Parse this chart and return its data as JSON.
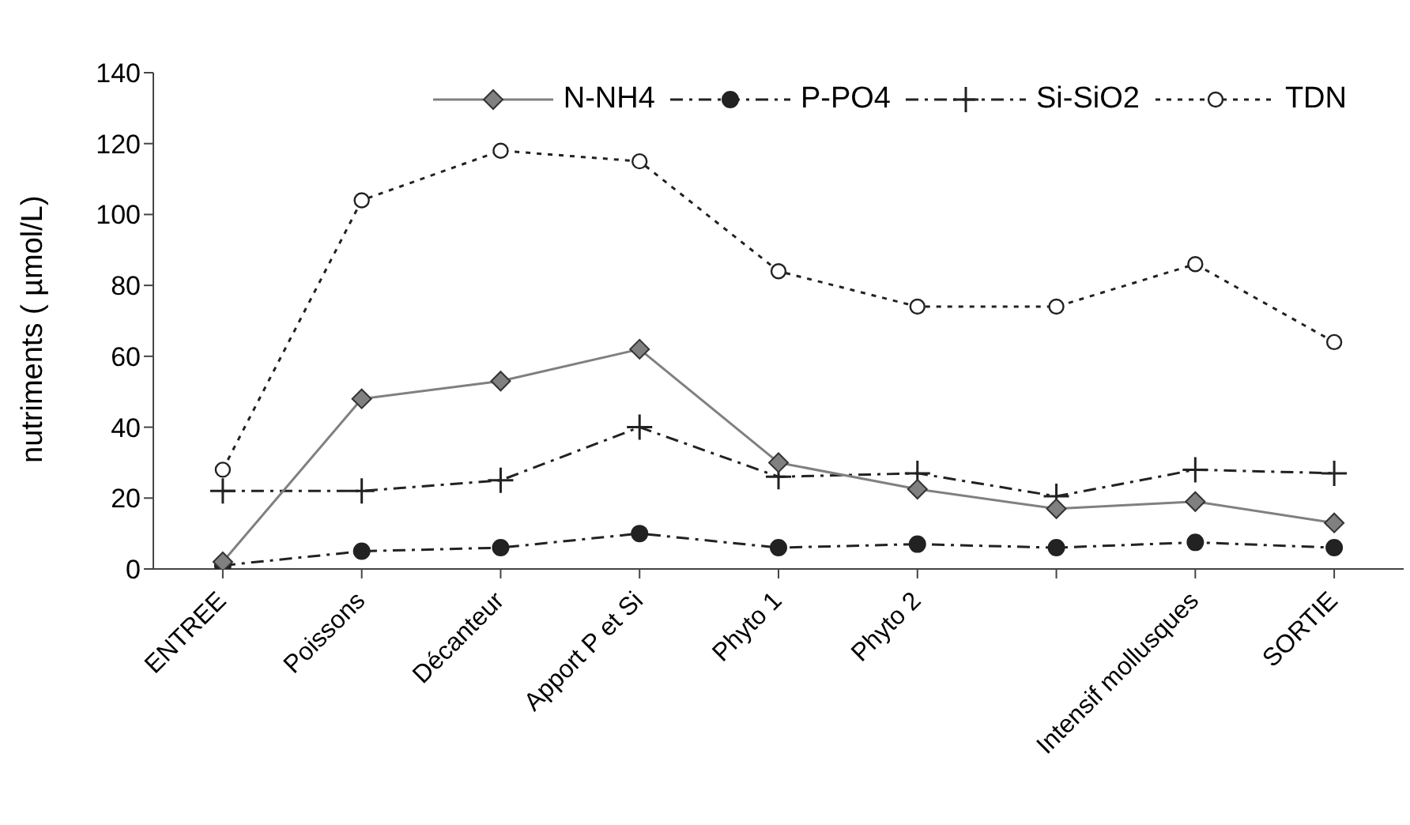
{
  "chart_data": {
    "type": "line",
    "ylabel": "nutriments ( µmol/L)",
    "categories": [
      "ENTREE",
      "Poissons",
      "Décanteur",
      "Apport P et Si",
      "Phyto 1",
      "Phyto 2",
      null,
      "Intensif mollusques",
      "SORTIE"
    ],
    "series": [
      {
        "name": "N-NH4",
        "color": "#808080",
        "marker": "diamond",
        "line_style": "solid",
        "values": [
          2,
          48,
          53,
          62,
          30,
          22.5,
          17,
          19,
          13
        ]
      },
      {
        "name": "P-PO4",
        "color": "#222222",
        "marker": "circle",
        "line_style": "dashed",
        "values": [
          1,
          5,
          6,
          10,
          6,
          7,
          6,
          7.5,
          6
        ]
      },
      {
        "name": "Si-SiO2",
        "color": "#222222",
        "marker": "cross",
        "line_style": "dashed",
        "values": [
          22,
          22,
          25,
          40,
          26,
          27,
          20.5,
          28,
          27
        ]
      },
      {
        "name": "TDN",
        "color": "#222222",
        "marker": "circle_open",
        "line_style": "dotted",
        "values": [
          28,
          104,
          118,
          115,
          84,
          74,
          74,
          86,
          64
        ]
      }
    ],
    "ylim": [
      0,
      140
    ],
    "yticks": [
      0,
      20,
      40,
      60,
      80,
      100,
      120,
      140
    ],
    "legend": "top right"
  }
}
